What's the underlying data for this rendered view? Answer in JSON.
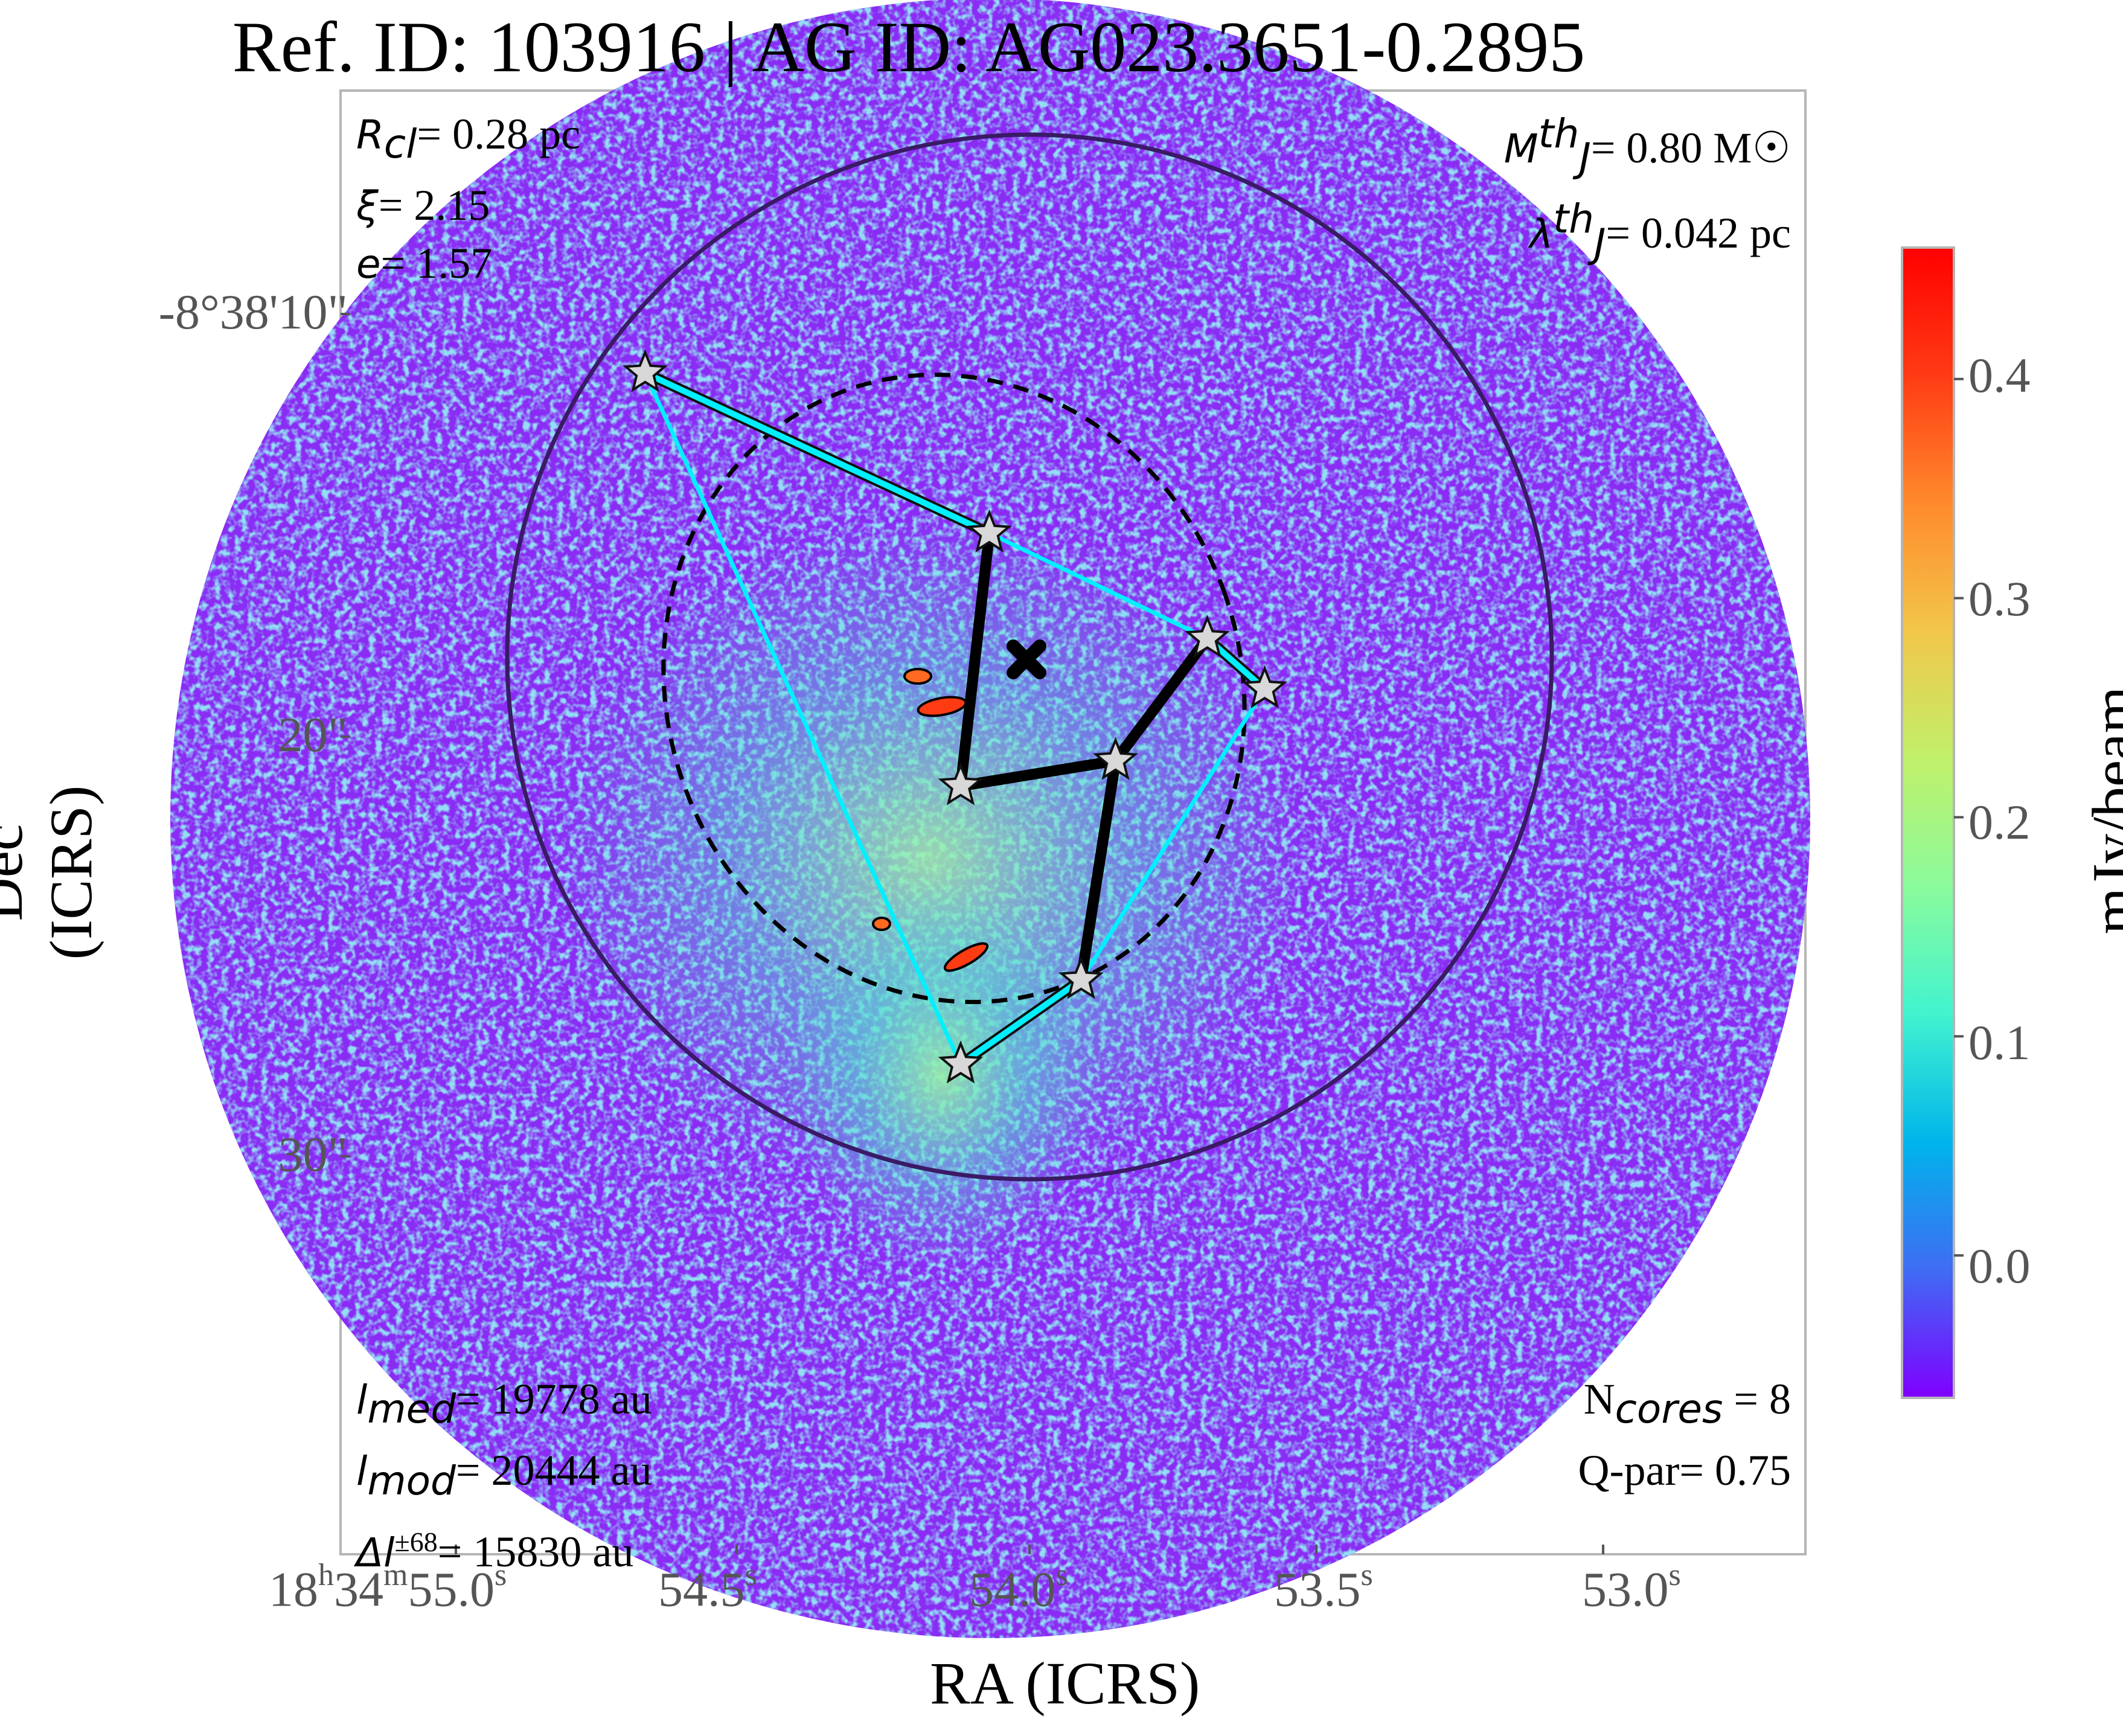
{
  "title": "Ref. ID: 103916 | AG ID: AG023.3651-0.2895",
  "axes": {
    "xlabel": "RA (ICRS)",
    "ylabel": "Dec (ICRS)",
    "yticks": [
      "-8°38'10\"",
      "20\"",
      "30\""
    ],
    "xticks": [
      {
        "h": "18",
        "hs": "h",
        "m": "34",
        "ms": "m",
        "s": "55.0",
        "ss": "s"
      },
      {
        "s": "54.5",
        "ss": "s"
      },
      {
        "s": "54.0",
        "ss": "s"
      },
      {
        "s": "53.5",
        "ss": "s"
      },
      {
        "s": "53.0",
        "ss": "s"
      }
    ]
  },
  "annotations": {
    "top_left": [
      {
        "sym": "R",
        "sub": "cl",
        "val": "= 0.28 pc"
      },
      {
        "sym": "ξ",
        "sub": "",
        "val": "= 2.15"
      },
      {
        "sym": "e",
        "sub": "",
        "val": "= 1.57"
      }
    ],
    "top_right": [
      {
        "sym": "M",
        "sub": "J",
        "sup": "th",
        "val": "= 0.80 M☉"
      },
      {
        "sym": "λ",
        "sub": "J",
        "sup": "th",
        "val": "= 0.042 pc"
      }
    ],
    "bottom_left": [
      {
        "sym": "l",
        "sub": "med",
        "val": "= 19778 au"
      },
      {
        "sym": "l",
        "sub": "mod",
        "val": "= 20444 au"
      },
      {
        "sym": "Δl",
        "sup": "±68",
        "val": "= 15830 au"
      }
    ],
    "bottom_right": [
      {
        "text": "N",
        "sub": "cores",
        "val": " = 8"
      },
      {
        "text": "Q-par= 0.75"
      }
    ]
  },
  "colorbar": {
    "label": "mJy/beam",
    "ticks": [
      "0.4",
      "0.3",
      "0.2",
      "0.1",
      "0.0"
    ],
    "colors": [
      "#7f00ff",
      "#3f6cf3",
      "#00b4eb",
      "#41f3cf",
      "#8afb9c",
      "#c1f06a",
      "#f2c64a",
      "#ff8a2c",
      "#ff3b14",
      "#ff0000"
    ]
  },
  "map_colors": {
    "background": "#8a2cf4",
    "noise": "#49b7e8",
    "emission": "#6ff2b8"
  },
  "cores": [
    {
      "ra": "54.67",
      "dec": "11.4"
    },
    {
      "ra": "54.07",
      "dec": "15.2"
    },
    {
      "ra": "53.69",
      "dec": "17.7"
    },
    {
      "ra": "53.59",
      "dec": "18.9"
    },
    {
      "ra": "53.85",
      "dec": "20.6"
    },
    {
      "ra": "54.12",
      "dec": "21.2"
    },
    {
      "ra": "53.91",
      "dec": "25.8"
    },
    {
      "ra": "54.12",
      "dec": "27.8"
    }
  ],
  "mst_black": [
    [
      1,
      5
    ],
    [
      5,
      4
    ],
    [
      4,
      2
    ],
    [
      4,
      6
    ]
  ],
  "mst_cyan": [
    [
      0,
      1
    ],
    [
      2,
      3
    ],
    [
      6,
      7
    ]
  ],
  "hull_cyan": [
    [
      0,
      7
    ],
    [
      1,
      2
    ],
    [
      3,
      6
    ]
  ]
}
